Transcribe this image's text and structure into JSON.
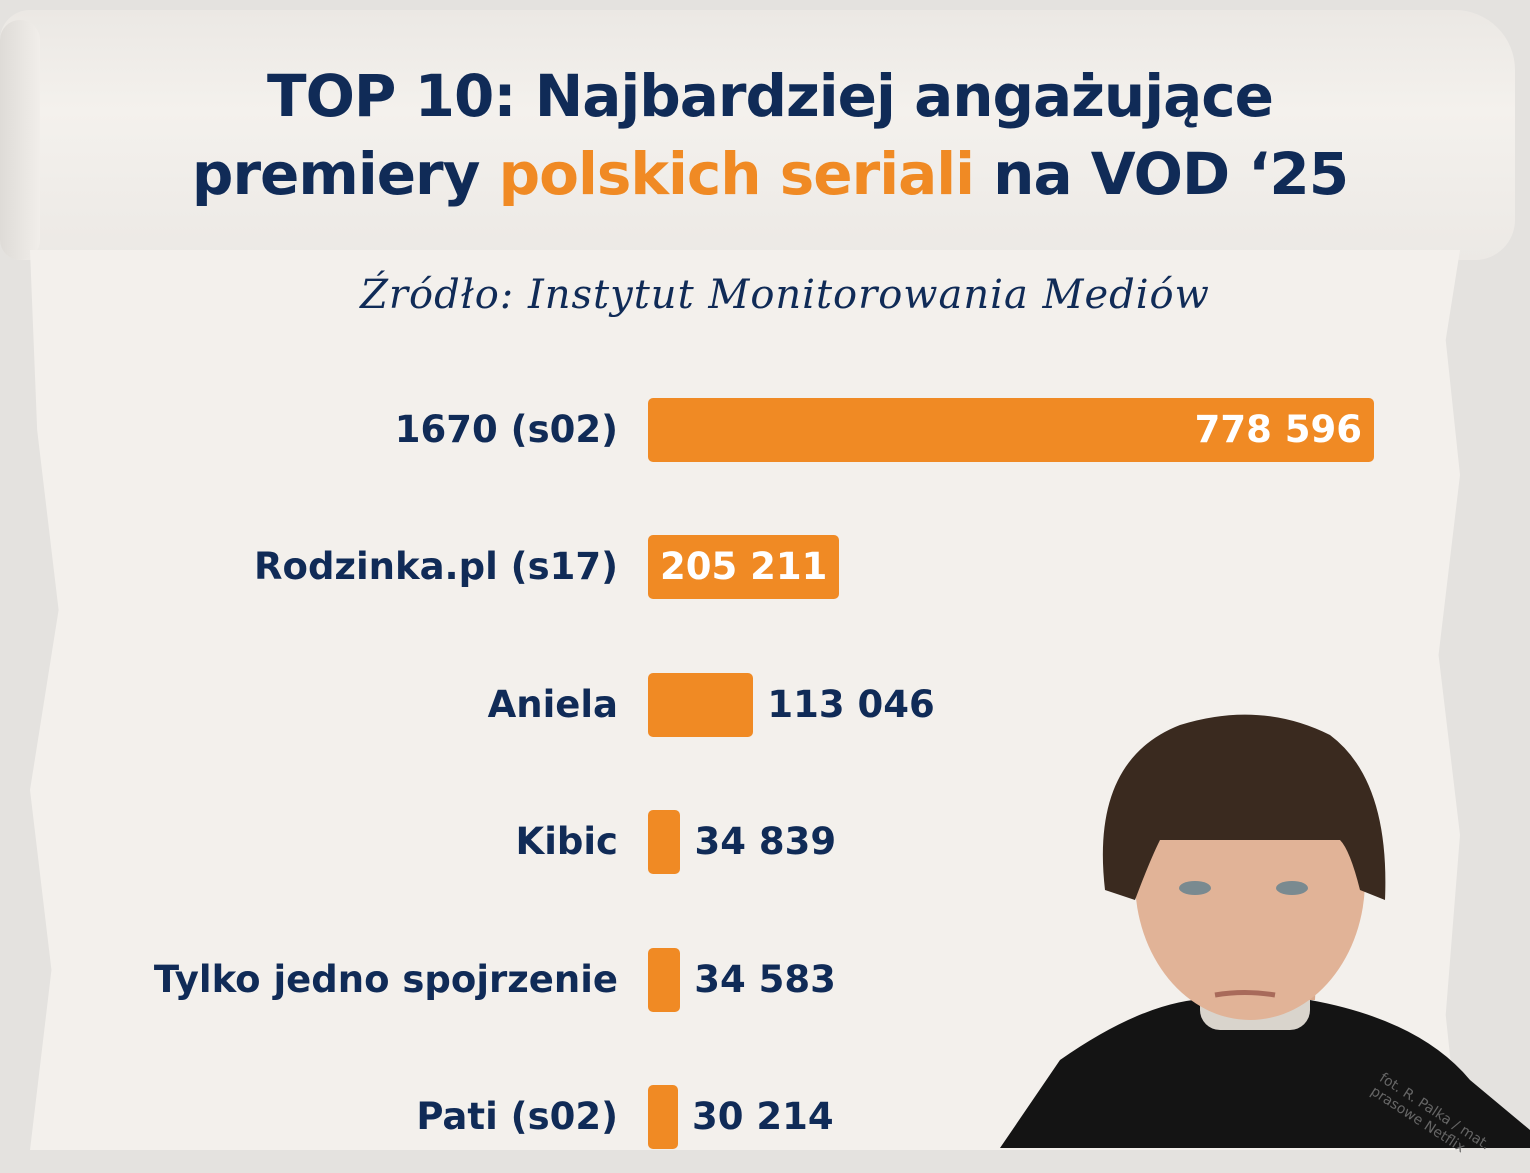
{
  "title": {
    "line1": "TOP 10: Najbardziej angażujące",
    "line2_pre": "premiery ",
    "line2_accent": "polskich seriali",
    "line2_post": " na VOD ‘25"
  },
  "source": "Źródło: Instytut Monitorowania Mediów",
  "photo_credit": "fot. R. Palka / mat. prasowe Netflix",
  "colors": {
    "navy": "#102b57",
    "orange": "#f08a24",
    "background": "#f3f0ec"
  },
  "chart_data": {
    "type": "bar",
    "orientation": "horizontal",
    "title": "TOP 10: Najbardziej angażujące premiery polskich seriali na VOD ‘25",
    "categories": [
      "1670 (s02)",
      "Rodzinka.pl (s17)",
      "Aniela",
      "Kibic",
      "Tylko jedno spojrzenie",
      "Pati (s02)"
    ],
    "values": [
      778596,
      205211,
      113046,
      34839,
      34583,
      30214
    ],
    "labels": [
      "778 596",
      "205 211",
      "113 046",
      "34 839",
      "34 583",
      "30 214"
    ],
    "xlim": [
      0,
      778596
    ],
    "grid": false
  }
}
